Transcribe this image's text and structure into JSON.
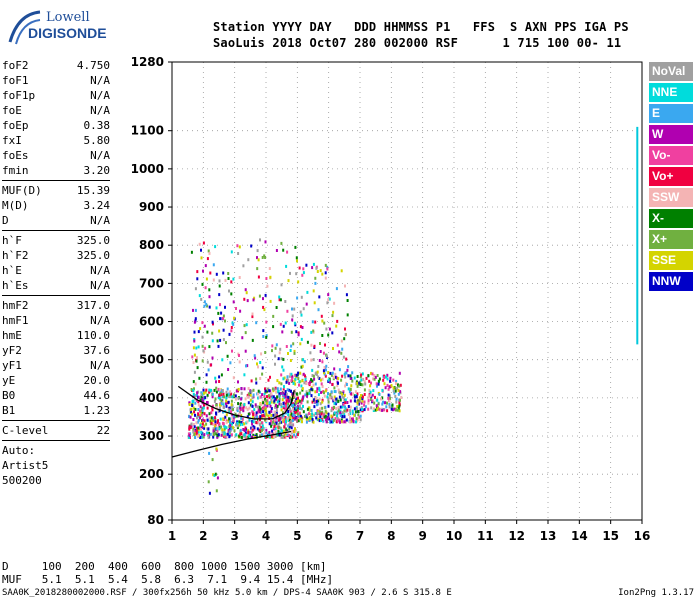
{
  "logo": {
    "line1": "Lowell",
    "line2": "DIGISONDE"
  },
  "header": {
    "labels": "Station YYYY DAY   DDD HHMMSS P1   FFS  S AXN PPS IGA PS",
    "values": "SaoLuis 2018 Oct07 280 002000 RSF      1 715 100 00- 11"
  },
  "params": {
    "g1": [
      {
        "k": "foF2",
        "v": "4.750"
      },
      {
        "k": "foF1",
        "v": "N/A"
      },
      {
        "k": "foF1p",
        "v": "N/A"
      },
      {
        "k": "foE",
        "v": "N/A"
      },
      {
        "k": "foEp",
        "v": "0.38"
      },
      {
        "k": "fxI",
        "v": "5.80"
      },
      {
        "k": "foEs",
        "v": "N/A"
      },
      {
        "k": "fmin",
        "v": "3.20"
      }
    ],
    "g2": [
      {
        "k": "MUF(D)",
        "v": "15.39"
      },
      {
        "k": "M(D)",
        "v": "3.24"
      },
      {
        "k": "D",
        "v": "N/A"
      }
    ],
    "g3": [
      {
        "k": "h`F",
        "v": "325.0"
      },
      {
        "k": "h`F2",
        "v": "325.0"
      },
      {
        "k": "h`E",
        "v": "N/A"
      },
      {
        "k": "h`Es",
        "v": "N/A"
      }
    ],
    "g4": [
      {
        "k": "hmF2",
        "v": "317.0"
      },
      {
        "k": "hmF1",
        "v": "N/A"
      },
      {
        "k": "hmE",
        "v": "110.0"
      },
      {
        "k": "yF2",
        "v": "37.6"
      },
      {
        "k": "yF1",
        "v": "N/A"
      },
      {
        "k": "yE",
        "v": "20.0"
      },
      {
        "k": "B0",
        "v": "44.6"
      },
      {
        "k": "B1",
        "v": "1.23"
      }
    ],
    "g5": [
      {
        "k": "C-level",
        "v": "22"
      }
    ],
    "g6": [
      "Auto:",
      "Artist5",
      "500200"
    ]
  },
  "legend": [
    {
      "label": "NoVal",
      "color": "#a0a0a0"
    },
    {
      "label": "NNE",
      "color": "#00dcdc"
    },
    {
      "label": "E",
      "color": "#3aa8f0"
    },
    {
      "label": "W",
      "color": "#b000b0"
    },
    {
      "label": "Vo-",
      "color": "#f040a0"
    },
    {
      "label": "Vo+",
      "color": "#f00040"
    },
    {
      "label": "SSW",
      "color": "#f4b4b4"
    },
    {
      "label": "X-",
      "color": "#008000"
    },
    {
      "label": "X+",
      "color": "#70b040"
    },
    {
      "label": "SSE",
      "color": "#d4d400"
    },
    {
      "label": "NNW",
      "color": "#0000c8"
    }
  ],
  "dmuf": {
    "d_row": "D     100  200  400  600  800 1000 1500 3000 [km]",
    "muf_row": "MUF   5.1  5.1  5.4  5.8  6.3  7.1  9.4 15.4 [MHz]"
  },
  "footer": "SAA0K_2018280002000.RSF / 300fx256h 50 kHz 5.0 km / DPS-4 SAA0K 903 / 2.6 S 315.8 E",
  "version": "Ion2Png 1.3.17",
  "chart_data": {
    "type": "scatter",
    "xlabel": "",
    "ylabel": "",
    "xlim": [
      1,
      16
    ],
    "ylim": [
      80,
      1280
    ],
    "x_ticks": [
      "1",
      "2",
      "3",
      "4",
      "5",
      "6",
      "7",
      "8",
      "9",
      "10",
      "11",
      "12",
      "13",
      "14",
      "15",
      "16"
    ],
    "y_ticks": [
      {
        "v": 80,
        "label": "80"
      },
      {
        "v": 200,
        "label": "200"
      },
      {
        "v": 300,
        "label": "300"
      },
      {
        "v": 400,
        "label": "400"
      },
      {
        "v": 500,
        "label": "500"
      },
      {
        "v": 600,
        "label": "600"
      },
      {
        "v": 700,
        "label": "700"
      },
      {
        "v": 800,
        "label": "800"
      },
      {
        "v": 900,
        "label": "900"
      },
      {
        "v": 1000,
        "label": "1000"
      },
      {
        "v": 1100,
        "label": "1100"
      },
      {
        "v": 1280,
        "label": "1280"
      }
    ],
    "grid": true,
    "clusters": [
      {
        "x": [
          1.5,
          5.0
        ],
        "y": [
          300,
          430
        ],
        "n": 900
      },
      {
        "x": [
          4.5,
          7.0
        ],
        "y": [
          340,
          470
        ],
        "n": 500
      },
      {
        "x": [
          7.0,
          8.3
        ],
        "y": [
          370,
          470
        ],
        "n": 160
      },
      {
        "x": [
          1.6,
          5.0
        ],
        "y": [
          440,
          820
        ],
        "n": 260
      },
      {
        "x": [
          5.0,
          6.6
        ],
        "y": [
          470,
          760
        ],
        "n": 110
      },
      {
        "x": [
          2.0,
          2.6
        ],
        "y": [
          140,
          280
        ],
        "n": 12
      }
    ],
    "profile_traces": [
      {
        "x": [
          1.0,
          1.8,
          2.6,
          3.4,
          4.2,
          4.8
        ],
        "y": [
          245,
          262,
          278,
          292,
          303,
          312
        ]
      },
      {
        "x": [
          1.2,
          1.8,
          2.4,
          3.0,
          3.6,
          4.2,
          4.6,
          4.8,
          4.9
        ],
        "y": [
          430,
          395,
          372,
          355,
          345,
          345,
          360,
          385,
          420
        ]
      }
    ],
    "side_trace": {
      "x": 15.85,
      "y": [
        540,
        1110
      ]
    }
  }
}
